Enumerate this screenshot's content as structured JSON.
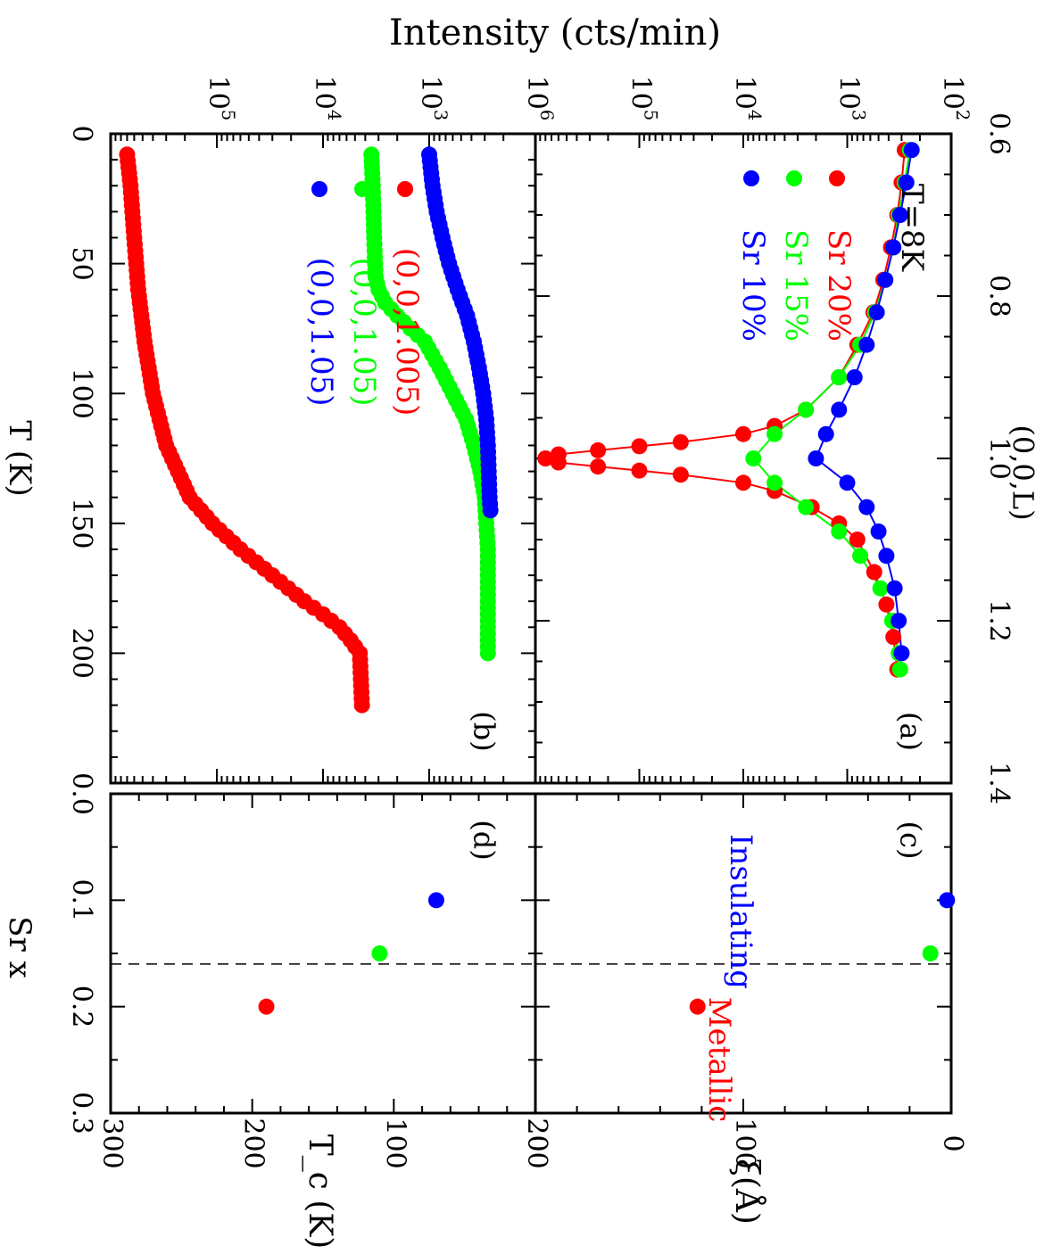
{
  "figure": {
    "orientation": "rotated 90 degrees clockwise",
    "top_label": "Intensity (cts/min)",
    "colors": {
      "red": "#ff0000",
      "green": "#00ff00",
      "blue": "#0000ff"
    }
  },
  "chart_data": [
    {
      "panel": "(a)",
      "type": "scatter",
      "title": "",
      "annotation": "T=8K",
      "xlabel": "(0,0,L)",
      "ylabel": "Intensity (cts/min)",
      "xlim": [
        0.6,
        1.4
      ],
      "ylim": [
        100,
        1000000
      ],
      "yscale": "log",
      "xticks": [
        "0.6",
        "0.8",
        "1.0",
        "1.2",
        "1.4"
      ],
      "yticks": [
        "10^2",
        "10^3",
        "10^4",
        "10^5",
        "10^6"
      ],
      "legend": {
        "placement": "top-left",
        "entries": [
          "Sr 20%",
          "Sr 15%",
          "Sr 10%"
        ]
      },
      "series": [
        {
          "name": "Sr 20%",
          "color": "#ff0000",
          "fit": true,
          "x": [
            0.62,
            0.66,
            0.7,
            0.74,
            0.78,
            0.82,
            0.86,
            0.9,
            0.94,
            0.96,
            0.97,
            0.98,
            0.985,
            0.99,
            0.995,
            1.0,
            1.005,
            1.01,
            1.015,
            1.02,
            1.03,
            1.04,
            1.06,
            1.08,
            1.1,
            1.14,
            1.18,
            1.22,
            1.26
          ],
          "y": [
            280,
            300,
            330,
            380,
            450,
            560,
            800,
            1200,
            2500,
            5000,
            10000,
            40000,
            100000,
            250000,
            600000,
            800000,
            600000,
            250000,
            100000,
            40000,
            10000,
            5000,
            2200,
            1200,
            800,
            550,
            420,
            360,
            330
          ]
        },
        {
          "name": "Sr 15%",
          "color": "#00ff00",
          "fit": true,
          "x": [
            0.62,
            0.66,
            0.7,
            0.74,
            0.78,
            0.82,
            0.86,
            0.9,
            0.94,
            0.97,
            1.0,
            1.03,
            1.06,
            1.09,
            1.12,
            1.16,
            1.2,
            1.24,
            1.26
          ],
          "y": [
            250,
            280,
            320,
            360,
            430,
            540,
            750,
            1200,
            2500,
            5000,
            8000,
            5000,
            2500,
            1200,
            750,
            480,
            370,
            320,
            310
          ]
        },
        {
          "name": "Sr 10%",
          "color": "#0000ff",
          "fit": true,
          "x": [
            0.62,
            0.66,
            0.7,
            0.74,
            0.78,
            0.82,
            0.86,
            0.9,
            0.94,
            0.97,
            1.0,
            1.03,
            1.06,
            1.09,
            1.12,
            1.16,
            1.2,
            1.24
          ],
          "y": [
            240,
            270,
            310,
            360,
            430,
            520,
            650,
            850,
            1200,
            1600,
            2000,
            1000,
            650,
            500,
            420,
            350,
            320,
            300
          ]
        }
      ]
    },
    {
      "panel": "(b)",
      "type": "scatter",
      "title": "",
      "xlabel": "T (K)",
      "ylabel": "Intensity (cts/min)",
      "xlim": [
        0,
        250
      ],
      "ylim": [
        100,
        1000000
      ],
      "yscale": "log",
      "xticks": [
        "0",
        "50",
        "100",
        "150",
        "200"
      ],
      "yticks": [
        "10^3",
        "10^4",
        "10^5"
      ],
      "legend": {
        "placement": "top-left",
        "entries": [
          "(0,0,1.005)",
          "(0,0,1.05)",
          "(0,0,1.05)"
        ]
      },
      "series": [
        {
          "name": "(0,0,1.005)",
          "color": "#ff0000",
          "x": [
            8,
            20,
            40,
            60,
            80,
            100,
            120,
            140,
            150,
            160,
            170,
            180,
            185,
            190,
            195,
            200,
            220
          ],
          "y": [
            700000,
            650000,
            600000,
            550000,
            480000,
            400000,
            300000,
            180000,
            110000,
            60000,
            30000,
            15000,
            10000,
            7000,
            5500,
            4500,
            4300
          ]
        },
        {
          "name": "(0,0,1.05)",
          "color": "#00ff00",
          "x": [
            8,
            20,
            40,
            55,
            60,
            65,
            70,
            75,
            80,
            90,
            100,
            110,
            120,
            130,
            140,
            150,
            160,
            180,
            200
          ],
          "y": [
            3500,
            3400,
            3300,
            3200,
            3000,
            2600,
            2000,
            1500,
            1100,
            800,
            600,
            450,
            380,
            330,
            300,
            290,
            280,
            280,
            280
          ]
        },
        {
          "name": "(0,0,1.05)",
          "color": "#0000ff",
          "x": [
            8,
            20,
            30,
            40,
            50,
            60,
            70,
            80,
            90,
            100,
            110,
            120,
            130,
            140,
            145
          ],
          "y": [
            1000,
            930,
            850,
            750,
            650,
            540,
            440,
            380,
            340,
            310,
            290,
            280,
            275,
            270,
            265
          ]
        }
      ]
    },
    {
      "panel": "(c)",
      "type": "scatter",
      "title": "",
      "xlabel": "",
      "ylabel": "ξ(Å)",
      "xlim": [
        0.0,
        0.3
      ],
      "ylim": [
        0,
        200
      ],
      "yticks": [
        "0",
        "100",
        "200"
      ],
      "dashed_line_x": 0.16,
      "annotations": [
        {
          "text": "Insulating",
          "color": "#0000ff"
        },
        {
          "text": "Metallic",
          "color": "#ff0000"
        }
      ],
      "series": [
        {
          "color": "#ff0000",
          "x": [
            0.2
          ],
          "y": [
            122
          ]
        },
        {
          "color": "#00ff00",
          "x": [
            0.15
          ],
          "y": [
            10
          ]
        },
        {
          "color": "#0000ff",
          "x": [
            0.1
          ],
          "y": [
            2
          ]
        }
      ]
    },
    {
      "panel": "(d)",
      "type": "scatter",
      "title": "",
      "xlabel": "Sr x",
      "ylabel": "T_c (K)",
      "xlim": [
        0.0,
        0.3
      ],
      "ylim": [
        0,
        300
      ],
      "xticks": [
        "0.0",
        "0.1",
        "0.2",
        "0.3"
      ],
      "yticks": [
        "0",
        "100",
        "200",
        "300"
      ],
      "dashed_line_x": 0.16,
      "series": [
        {
          "color": "#ff0000",
          "x": [
            0.2
          ],
          "y": [
            190
          ]
        },
        {
          "color": "#00ff00",
          "x": [
            0.15
          ],
          "y": [
            110
          ]
        },
        {
          "color": "#0000ff",
          "x": [
            0.1
          ],
          "y": [
            70
          ]
        }
      ]
    }
  ]
}
